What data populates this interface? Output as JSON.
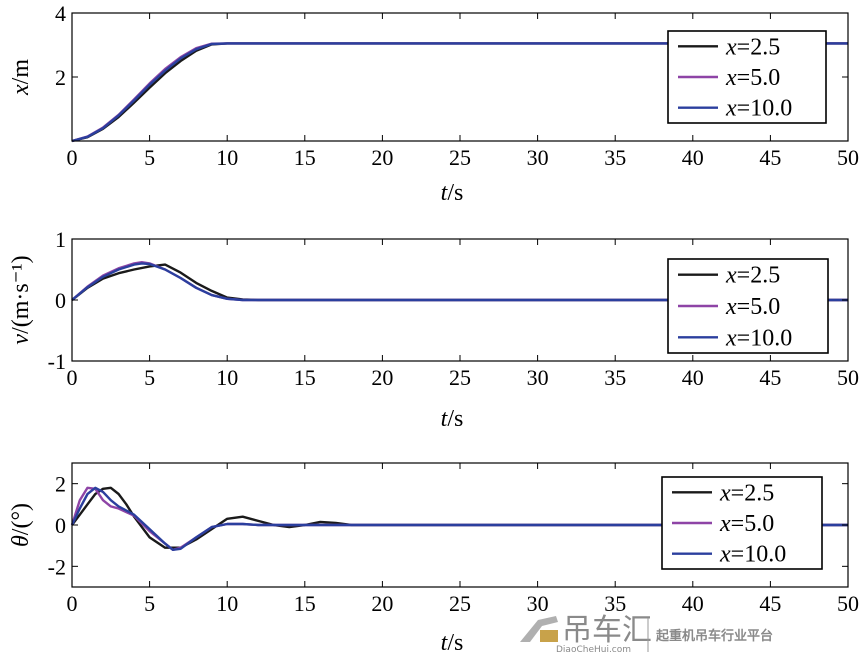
{
  "chart_data": [
    {
      "type": "line",
      "xlabel_italic": "t",
      "xlabel_unit": "/s",
      "ylabel_italic": "x",
      "ylabel_unit": "/m",
      "xlim": [
        0,
        50
      ],
      "ylim": [
        0,
        4
      ],
      "xticks": [
        "0",
        "5",
        "10",
        "15",
        "20",
        "25",
        "30",
        "35",
        "40",
        "45",
        "50"
      ],
      "yticks": [
        {
          "v": 2,
          "label": "2"
        },
        {
          "v": 4,
          "label": "4"
        }
      ],
      "legend_position": "top-right",
      "series": [
        {
          "name_var": "x",
          "name_val": "=2.5",
          "color": "#1a1a1a",
          "x": [
            0,
            1,
            2,
            3,
            4,
            5,
            6,
            7,
            8,
            9,
            10,
            50
          ],
          "y": [
            0,
            0.12,
            0.38,
            0.75,
            1.2,
            1.67,
            2.12,
            2.5,
            2.82,
            3.02,
            3.05,
            3.05
          ]
        },
        {
          "name_var": "x",
          "name_val": "=5.0",
          "color": "#8e44a6",
          "x": [
            0,
            1,
            2,
            3,
            4,
            5,
            6,
            7,
            8,
            9,
            10,
            50
          ],
          "y": [
            0,
            0.14,
            0.42,
            0.82,
            1.3,
            1.8,
            2.25,
            2.62,
            2.9,
            3.04,
            3.05,
            3.05
          ]
        },
        {
          "name_var": "x",
          "name_val": "=10.0",
          "color": "#2b3f9e",
          "x": [
            0,
            1,
            2,
            3,
            4,
            5,
            6,
            7,
            8,
            9,
            10,
            50
          ],
          "y": [
            0,
            0.13,
            0.4,
            0.8,
            1.27,
            1.76,
            2.2,
            2.58,
            2.87,
            3.03,
            3.05,
            3.05
          ]
        }
      ]
    },
    {
      "type": "line",
      "xlabel_italic": "t",
      "xlabel_unit": "/s",
      "ylabel_italic": "v",
      "ylabel_unit": "/(m·s⁻¹)",
      "xlim": [
        0,
        50
      ],
      "ylim": [
        -1,
        1
      ],
      "xticks": [
        "0",
        "5",
        "10",
        "15",
        "20",
        "25",
        "30",
        "35",
        "40",
        "45",
        "50"
      ],
      "yticks": [
        {
          "v": -1,
          "label": "-1"
        },
        {
          "v": 0,
          "label": "0"
        },
        {
          "v": 1,
          "label": "1"
        }
      ],
      "legend_position": "top-right",
      "series": [
        {
          "name_var": "x",
          "name_val": "=2.5",
          "color": "#1a1a1a",
          "x": [
            0,
            1,
            2,
            3,
            4,
            5,
            6,
            7,
            8,
            9,
            10,
            11,
            12,
            50
          ],
          "y": [
            0,
            0.2,
            0.35,
            0.44,
            0.5,
            0.55,
            0.58,
            0.45,
            0.28,
            0.15,
            0.04,
            0.01,
            0,
            0
          ]
        },
        {
          "name_var": "x",
          "name_val": "=5.0",
          "color": "#8e44a6",
          "x": [
            0,
            1,
            2,
            3,
            4,
            4.5,
            5,
            6,
            7,
            8,
            9,
            10,
            11,
            12,
            50
          ],
          "y": [
            0,
            0.22,
            0.4,
            0.52,
            0.6,
            0.62,
            0.6,
            0.5,
            0.36,
            0.2,
            0.08,
            0.02,
            0,
            0,
            0
          ]
        },
        {
          "name_var": "x",
          "name_val": "=10.0",
          "color": "#2b3f9e",
          "x": [
            0,
            1,
            2,
            3,
            4,
            4.5,
            5,
            6,
            7,
            8,
            9,
            10,
            11,
            12,
            50
          ],
          "y": [
            0,
            0.21,
            0.38,
            0.5,
            0.58,
            0.6,
            0.59,
            0.5,
            0.36,
            0.2,
            0.08,
            0.02,
            0,
            0,
            0
          ]
        }
      ]
    },
    {
      "type": "line",
      "xlabel_italic": "t",
      "xlabel_unit": "/s",
      "ylabel_italic": "θ",
      "ylabel_unit": "/(°)",
      "xlim": [
        0,
        50
      ],
      "ylim": [
        -3,
        3
      ],
      "xticks": [
        "0",
        "5",
        "10",
        "15",
        "20",
        "25",
        "30",
        "35",
        "40",
        "45",
        "50"
      ],
      "yticks": [
        {
          "v": -2,
          "label": "-2"
        },
        {
          "v": 0,
          "label": "0"
        },
        {
          "v": 2,
          "label": "2"
        }
      ],
      "legend_position": "top-right",
      "series": [
        {
          "name_var": "x",
          "name_val": "=2.5",
          "color": "#1a1a1a",
          "x": [
            0,
            0.5,
            1,
            1.5,
            2,
            2.5,
            3,
            3.5,
            4,
            5,
            6,
            7,
            8,
            9,
            10,
            11,
            12,
            13,
            14,
            15,
            16,
            17,
            18,
            50
          ],
          "y": [
            0,
            0.5,
            1.0,
            1.5,
            1.75,
            1.8,
            1.5,
            1.0,
            0.4,
            -0.6,
            -1.1,
            -1.1,
            -0.7,
            -0.2,
            0.3,
            0.4,
            0.2,
            0,
            -0.1,
            0,
            0.15,
            0.1,
            0,
            0
          ]
        },
        {
          "name_var": "x",
          "name_val": "=5.0",
          "color": "#8e44a6",
          "x": [
            0,
            0.5,
            1,
            1.5,
            2,
            2.5,
            3,
            4,
            5,
            6,
            6.5,
            7,
            8,
            9,
            10,
            11,
            12,
            50
          ],
          "y": [
            0,
            1.2,
            1.8,
            1.75,
            1.2,
            0.9,
            0.8,
            0.45,
            -0.3,
            -0.9,
            -1.2,
            -1.1,
            -0.6,
            -0.1,
            0.05,
            0.05,
            0,
            0
          ]
        },
        {
          "name_var": "x",
          "name_val": "=10.0",
          "color": "#2b3f9e",
          "x": [
            0,
            0.5,
            1,
            1.5,
            2,
            2.5,
            3,
            4,
            5,
            6,
            6.5,
            7,
            8,
            9,
            10,
            11,
            12,
            50
          ],
          "y": [
            0,
            0.8,
            1.5,
            1.8,
            1.6,
            1.2,
            0.9,
            0.5,
            -0.2,
            -0.9,
            -1.2,
            -1.15,
            -0.6,
            -0.1,
            0.05,
            0.05,
            0,
            0
          ]
        }
      ]
    }
  ],
  "watermark": {
    "brand": "吊车汇",
    "site": "DiaoCheHui.com",
    "slogan": "起重机吊车行业平台"
  }
}
